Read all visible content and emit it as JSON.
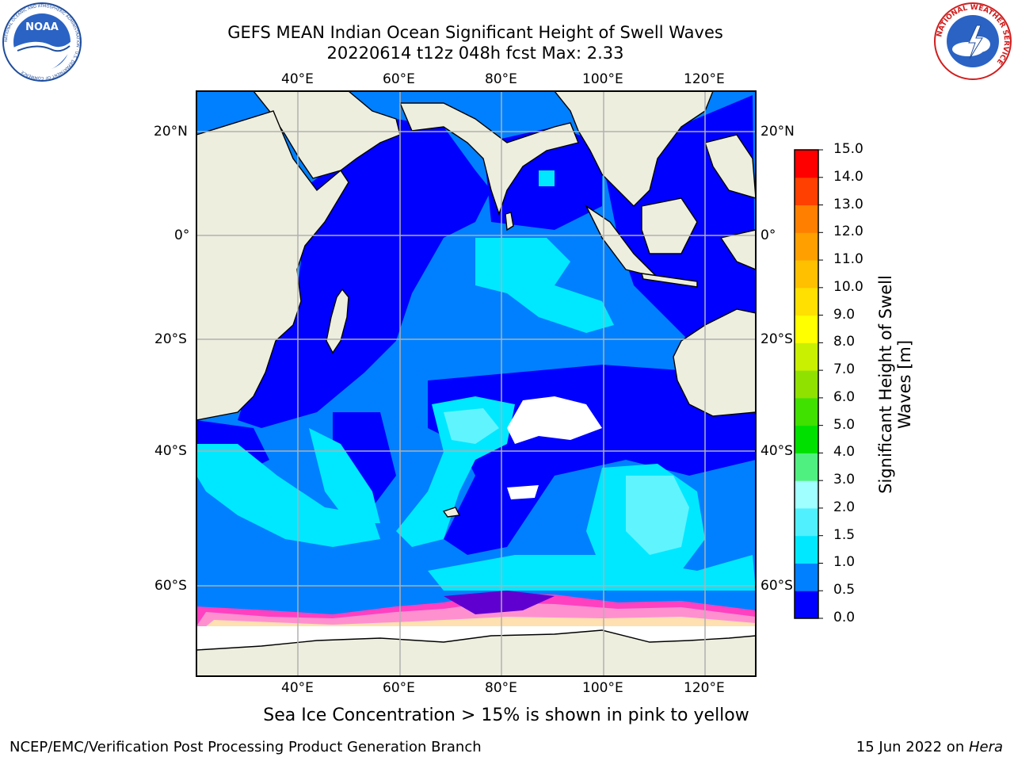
{
  "header": {
    "title_line1": "GEFS MEAN Indian Ocean Significant Height of Swell Waves",
    "title_line2": "20220614 t12z 048h fcst   Max: 2.33"
  },
  "logos": {
    "left": "NOAA",
    "left_ring": "NATIONAL OCEANIC AND ATMOSPHERIC ADMINISTRATION · U.S. DEPARTMENT OF COMMERCE",
    "right_ring": "NATIONAL WEATHER SERVICE"
  },
  "map": {
    "lon_labels": [
      "40°E",
      "60°E",
      "80°E",
      "100°E",
      "120°E"
    ],
    "lat_labels": [
      "20°N",
      "0°",
      "20°S",
      "40°S",
      "60°S"
    ],
    "colors": {
      "land": "#eeeedf",
      "ice": "#ffffff",
      "grid": "#b0b0b0",
      "coast": "#000000"
    }
  },
  "colorbar": {
    "label": "Significant Height of Swell Waves [m]",
    "ticks": [
      "0.0",
      "0.5",
      "1.0",
      "1.5",
      "2.0",
      "3.0",
      "4.0",
      "5.0",
      "6.0",
      "7.0",
      "8.0",
      "9.0",
      "10.0",
      "11.0",
      "12.0",
      "13.0",
      "14.0",
      "15.0"
    ],
    "colors": [
      "#0000ff",
      "#0080ff",
      "#00e8ff",
      "#50f0ff",
      "#a0ffff",
      "#50f080",
      "#00e000",
      "#40e000",
      "#90e000",
      "#c8f000",
      "#ffff00",
      "#ffe000",
      "#ffc000",
      "#ffa000",
      "#ff8000",
      "#ff4000",
      "#ff0000"
    ]
  },
  "caption": "Sea Ice Concentration > 15% is shown in pink to yellow",
  "footer": {
    "left": "NCEP/EMC/Verification Post Processing Product Generation Branch",
    "right_date": "15 Jun 2022 on ",
    "right_host": "Hera"
  }
}
